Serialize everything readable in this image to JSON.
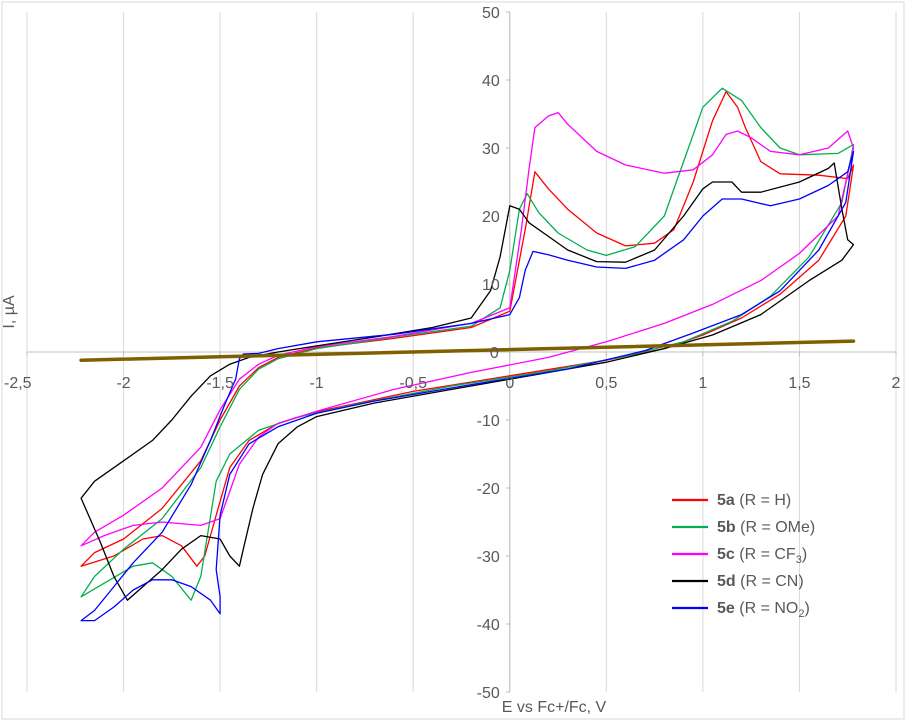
{
  "chart_data": {
    "type": "line",
    "title": "",
    "xlabel": "E vs Fc+/Fc, V",
    "ylabel": "I, µA",
    "xlim": [
      -2.5,
      2
    ],
    "ylim": [
      -50,
      50
    ],
    "xticks": [
      -2.5,
      -2,
      -1.5,
      -1,
      -0.5,
      0,
      0.5,
      1,
      1.5,
      2
    ],
    "yticks": [
      -50,
      -40,
      -30,
      -20,
      -10,
      0,
      10,
      20,
      30,
      40,
      50
    ],
    "xtick_labels": [
      "-2,5",
      "-2",
      "-1,5",
      "-1",
      "-0,5",
      "0",
      "0,5",
      "1",
      "1,5",
      "2"
    ],
    "ytick_labels": [
      "-50",
      "-40",
      "-30",
      "-20",
      "-10",
      "0",
      "10",
      "20",
      "30",
      "40",
      "50"
    ],
    "grid": "vertical",
    "legend_position": "bottom-right",
    "baseline": {
      "name": "background",
      "color": "#7f6000",
      "points": [
        [
          -2.22,
          -1.2
        ],
        [
          1.78,
          1.6
        ]
      ]
    },
    "series": [
      {
        "id": "5a",
        "legend_bold": "5a",
        "legend_text": " (R = H)",
        "legend_sub": "",
        "legend_tail": "",
        "color": "#ff0000",
        "points": [
          [
            -2.22,
            -31.5
          ],
          [
            -2.15,
            -29.5
          ],
          [
            -2.0,
            -27.5
          ],
          [
            -1.8,
            -23
          ],
          [
            -1.6,
            -16
          ],
          [
            -1.5,
            -10
          ],
          [
            -1.4,
            -5
          ],
          [
            -1.3,
            -2.3
          ],
          [
            -1.2,
            -0.8
          ],
          [
            -1.0,
            0.6
          ],
          [
            -0.6,
            2.0
          ],
          [
            -0.2,
            3.6
          ],
          [
            0.0,
            6.0
          ],
          [
            0.08,
            18
          ],
          [
            0.13,
            26.5
          ],
          [
            0.2,
            24
          ],
          [
            0.3,
            21
          ],
          [
            0.45,
            17.5
          ],
          [
            0.6,
            15.6
          ],
          [
            0.75,
            16
          ],
          [
            0.85,
            18
          ],
          [
            0.95,
            25
          ],
          [
            1.05,
            34
          ],
          [
            1.12,
            38.3
          ],
          [
            1.18,
            36
          ],
          [
            1.22,
            33
          ],
          [
            1.3,
            28
          ],
          [
            1.4,
            26.2
          ],
          [
            1.6,
            26
          ],
          [
            1.75,
            25.5
          ],
          [
            1.78,
            27.5
          ],
          [
            1.74,
            20
          ],
          [
            1.6,
            13.5
          ],
          [
            1.4,
            8.5
          ],
          [
            1.2,
            5
          ],
          [
            1.0,
            2.5
          ],
          [
            0.8,
            0.5
          ],
          [
            0.5,
            -1.2
          ],
          [
            0.0,
            -3.5
          ],
          [
            -0.5,
            -5.8
          ],
          [
            -1.0,
            -8.8
          ],
          [
            -1.2,
            -10.5
          ],
          [
            -1.35,
            -13
          ],
          [
            -1.45,
            -17
          ],
          [
            -1.52,
            -24
          ],
          [
            -1.58,
            -30
          ],
          [
            -1.62,
            -31.5
          ],
          [
            -1.7,
            -28.5
          ],
          [
            -1.8,
            -27
          ],
          [
            -1.9,
            -27.5
          ],
          [
            -2.05,
            -30
          ],
          [
            -2.22,
            -31.5
          ]
        ]
      },
      {
        "id": "5b",
        "legend_bold": "5b",
        "legend_text": " (R = OMe)",
        "legend_sub": "",
        "legend_tail": "",
        "color": "#00b050",
        "points": [
          [
            -2.22,
            -36
          ],
          [
            -2.15,
            -33
          ],
          [
            -2.0,
            -29
          ],
          [
            -1.8,
            -24.5
          ],
          [
            -1.6,
            -17
          ],
          [
            -1.5,
            -11
          ],
          [
            -1.4,
            -5.5
          ],
          [
            -1.3,
            -2.5
          ],
          [
            -1.2,
            -1.0
          ],
          [
            -1.0,
            0.5
          ],
          [
            -0.6,
            2.2
          ],
          [
            -0.2,
            3.8
          ],
          [
            -0.05,
            6.5
          ],
          [
            0.0,
            12
          ],
          [
            0.05,
            21
          ],
          [
            0.09,
            23.3
          ],
          [
            0.15,
            20.5
          ],
          [
            0.25,
            17.5
          ],
          [
            0.4,
            15
          ],
          [
            0.5,
            14.2
          ],
          [
            0.65,
            15.5
          ],
          [
            0.8,
            20
          ],
          [
            0.9,
            28
          ],
          [
            1.0,
            36
          ],
          [
            1.1,
            38.8
          ],
          [
            1.2,
            37
          ],
          [
            1.3,
            33
          ],
          [
            1.4,
            30
          ],
          [
            1.5,
            29
          ],
          [
            1.7,
            29.2
          ],
          [
            1.78,
            30.5
          ],
          [
            1.72,
            22
          ],
          [
            1.55,
            14
          ],
          [
            1.35,
            8.2
          ],
          [
            1.15,
            4.5
          ],
          [
            0.9,
            1.5
          ],
          [
            0.6,
            -0.6
          ],
          [
            0.2,
            -2.8
          ],
          [
            -0.3,
            -5
          ],
          [
            -0.8,
            -7.7
          ],
          [
            -1.1,
            -9.6
          ],
          [
            -1.3,
            -11.5
          ],
          [
            -1.45,
            -15
          ],
          [
            -1.52,
            -19
          ],
          [
            -1.56,
            -26
          ],
          [
            -1.6,
            -33
          ],
          [
            -1.65,
            -36.5
          ],
          [
            -1.75,
            -33
          ],
          [
            -1.85,
            -31
          ],
          [
            -1.95,
            -31.5
          ],
          [
            -2.1,
            -34
          ],
          [
            -2.22,
            -36
          ]
        ]
      },
      {
        "id": "5c",
        "legend_bold": "5c",
        "legend_text": " (R = CF",
        "legend_sub": "3",
        "legend_tail": ")",
        "color": "#ff00ff",
        "points": [
          [
            -2.22,
            -28.5
          ],
          [
            -2.15,
            -26.5
          ],
          [
            -2.0,
            -24
          ],
          [
            -1.8,
            -20
          ],
          [
            -1.6,
            -14
          ],
          [
            -1.5,
            -8.5
          ],
          [
            -1.4,
            -4
          ],
          [
            -1.3,
            -1.8
          ],
          [
            -1.2,
            -0.5
          ],
          [
            -1.0,
            0.8
          ],
          [
            -0.6,
            2.3
          ],
          [
            -0.2,
            4.2
          ],
          [
            0.0,
            6.5
          ],
          [
            0.06,
            18
          ],
          [
            0.1,
            27
          ],
          [
            0.13,
            33
          ],
          [
            0.2,
            34.7
          ],
          [
            0.25,
            35.2
          ],
          [
            0.3,
            33.5
          ],
          [
            0.45,
            29.5
          ],
          [
            0.6,
            27.5
          ],
          [
            0.8,
            26.3
          ],
          [
            0.95,
            26.8
          ],
          [
            1.05,
            29
          ],
          [
            1.12,
            32
          ],
          [
            1.18,
            32.5
          ],
          [
            1.25,
            31.5
          ],
          [
            1.35,
            29.5
          ],
          [
            1.5,
            29
          ],
          [
            1.65,
            30
          ],
          [
            1.75,
            32.5
          ],
          [
            1.78,
            30
          ],
          [
            1.7,
            20
          ],
          [
            1.5,
            14.5
          ],
          [
            1.3,
            10.5
          ],
          [
            1.05,
            7
          ],
          [
            0.8,
            4.2
          ],
          [
            0.5,
            1.5
          ],
          [
            0.2,
            -0.8
          ],
          [
            -0.2,
            -3
          ],
          [
            -0.6,
            -5.5
          ],
          [
            -1.0,
            -8.7
          ],
          [
            -1.2,
            -10.5
          ],
          [
            -1.3,
            -12.5
          ],
          [
            -1.4,
            -16.5
          ],
          [
            -1.45,
            -20.5
          ],
          [
            -1.5,
            -24.5
          ],
          [
            -1.6,
            -25.5
          ],
          [
            -1.8,
            -25
          ],
          [
            -1.95,
            -25.5
          ],
          [
            -2.1,
            -27
          ],
          [
            -2.22,
            -28.5
          ]
        ]
      },
      {
        "id": "5d",
        "legend_bold": "5d",
        "legend_text": " (R = CN)",
        "legend_sub": "",
        "legend_tail": "",
        "color": "#000000",
        "points": [
          [
            -2.22,
            -21.5
          ],
          [
            -2.15,
            -19
          ],
          [
            -2.0,
            -16
          ],
          [
            -1.85,
            -13
          ],
          [
            -1.75,
            -10
          ],
          [
            -1.65,
            -6.5
          ],
          [
            -1.55,
            -3.5
          ],
          [
            -1.45,
            -1.8
          ],
          [
            -1.35,
            -0.8
          ],
          [
            -1.2,
            0
          ],
          [
            -1.0,
            0.9
          ],
          [
            -0.7,
            2.2
          ],
          [
            -0.4,
            3.6
          ],
          [
            -0.2,
            5
          ],
          [
            -0.1,
            9
          ],
          [
            -0.05,
            14
          ],
          [
            0.0,
            21.5
          ],
          [
            0.05,
            21
          ],
          [
            0.1,
            19
          ],
          [
            0.2,
            17
          ],
          [
            0.3,
            15
          ],
          [
            0.45,
            13.3
          ],
          [
            0.6,
            13.2
          ],
          [
            0.75,
            15
          ],
          [
            0.9,
            20
          ],
          [
            1.0,
            24
          ],
          [
            1.05,
            25
          ],
          [
            1.15,
            25
          ],
          [
            1.2,
            23.5
          ],
          [
            1.3,
            23.5
          ],
          [
            1.5,
            25
          ],
          [
            1.65,
            27
          ],
          [
            1.68,
            27.8
          ],
          [
            1.72,
            21
          ],
          [
            1.75,
            16.5
          ],
          [
            1.78,
            15.8
          ],
          [
            1.72,
            13.5
          ],
          [
            1.55,
            10.5
          ],
          [
            1.3,
            5.5
          ],
          [
            1.05,
            2.5
          ],
          [
            0.8,
            0.5
          ],
          [
            0.5,
            -1.5
          ],
          [
            0.1,
            -3.5
          ],
          [
            -0.3,
            -5.5
          ],
          [
            -0.7,
            -7.5
          ],
          [
            -1.0,
            -9.5
          ],
          [
            -1.1,
            -11
          ],
          [
            -1.2,
            -13.5
          ],
          [
            -1.28,
            -18
          ],
          [
            -1.33,
            -23
          ],
          [
            -1.38,
            -29
          ],
          [
            -1.4,
            -31.5
          ],
          [
            -1.45,
            -30
          ],
          [
            -1.5,
            -27.5
          ],
          [
            -1.6,
            -27
          ],
          [
            -1.7,
            -29
          ],
          [
            -1.8,
            -32
          ],
          [
            -1.9,
            -34.5
          ],
          [
            -1.98,
            -36.5
          ],
          [
            -2.05,
            -33
          ],
          [
            -2.12,
            -28
          ],
          [
            -2.22,
            -21.5
          ]
        ]
      },
      {
        "id": "5e",
        "legend_bold": "5e",
        "legend_text": " (R = NO",
        "legend_sub": "2",
        "legend_tail": ")",
        "color": "#0000ff",
        "points": [
          [
            -2.22,
            -39.5
          ],
          [
            -2.15,
            -38
          ],
          [
            -2.05,
            -34.5
          ],
          [
            -1.95,
            -31
          ],
          [
            -1.8,
            -26.5
          ],
          [
            -1.65,
            -19.5
          ],
          [
            -1.55,
            -13
          ],
          [
            -1.48,
            -8
          ],
          [
            -1.42,
            -4
          ],
          [
            -1.4,
            -1
          ],
          [
            -1.38,
            -0.3
          ],
          [
            -1.3,
            -0.2
          ],
          [
            -1.2,
            0.5
          ],
          [
            -1.0,
            1.5
          ],
          [
            -0.6,
            2.6
          ],
          [
            -0.2,
            4.2
          ],
          [
            0.0,
            5.5
          ],
          [
            0.05,
            8
          ],
          [
            0.08,
            12
          ],
          [
            0.12,
            14.8
          ],
          [
            0.2,
            14.3
          ],
          [
            0.3,
            13.5
          ],
          [
            0.45,
            12.5
          ],
          [
            0.6,
            12.3
          ],
          [
            0.75,
            13.5
          ],
          [
            0.9,
            16.5
          ],
          [
            1.0,
            20
          ],
          [
            1.1,
            22.5
          ],
          [
            1.2,
            22.5
          ],
          [
            1.35,
            21.5
          ],
          [
            1.5,
            22.5
          ],
          [
            1.65,
            24.5
          ],
          [
            1.75,
            26.5
          ],
          [
            1.78,
            29.5
          ],
          [
            1.74,
            22
          ],
          [
            1.6,
            15
          ],
          [
            1.4,
            9
          ],
          [
            1.2,
            5.5
          ],
          [
            0.95,
            2.8
          ],
          [
            0.7,
            0.2
          ],
          [
            0.3,
            -2.5
          ],
          [
            -0.2,
            -4.8
          ],
          [
            -0.7,
            -7.2
          ],
          [
            -1.0,
            -9
          ],
          [
            -1.2,
            -11
          ],
          [
            -1.35,
            -13.5
          ],
          [
            -1.45,
            -18
          ],
          [
            -1.5,
            -24
          ],
          [
            -1.52,
            -32
          ],
          [
            -1.5,
            -36
          ],
          [
            -1.5,
            -38.5
          ],
          [
            -1.55,
            -36.5
          ],
          [
            -1.65,
            -34.5
          ],
          [
            -1.75,
            -33.5
          ],
          [
            -1.85,
            -33.5
          ],
          [
            -1.95,
            -35
          ],
          [
            -2.05,
            -37.5
          ],
          [
            -2.15,
            -39.5
          ],
          [
            -2.22,
            -39.5
          ]
        ]
      }
    ]
  }
}
